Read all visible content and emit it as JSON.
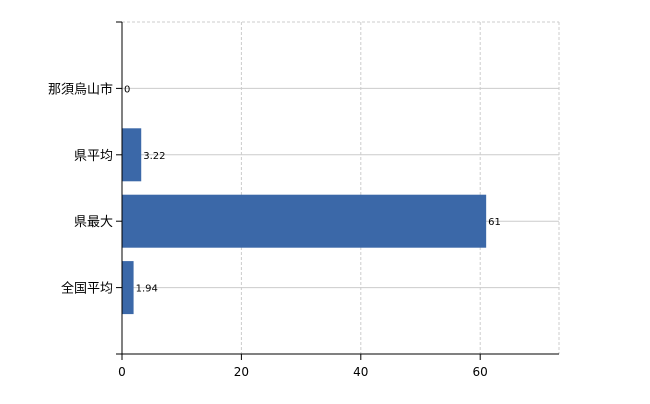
{
  "chart_data": {
    "type": "bar",
    "orientation": "horizontal",
    "categories": [
      "那須烏山市",
      "県平均",
      "県最大",
      "全国平均"
    ],
    "values": [
      0,
      3.22,
      61,
      1.94
    ],
    "value_labels": [
      "0",
      "3.22",
      "61",
      "1.94"
    ],
    "xlim": [
      0,
      73.2
    ],
    "xticks": [
      0,
      20,
      40,
      60
    ],
    "xtick_labels": [
      "0",
      "20",
      "40",
      "60"
    ],
    "title": "",
    "xlabel": "",
    "ylabel": "",
    "grid": true,
    "colors": {
      "bar": "#3b68a8",
      "grid": "#cccccc",
      "axis": "#000000"
    }
  }
}
